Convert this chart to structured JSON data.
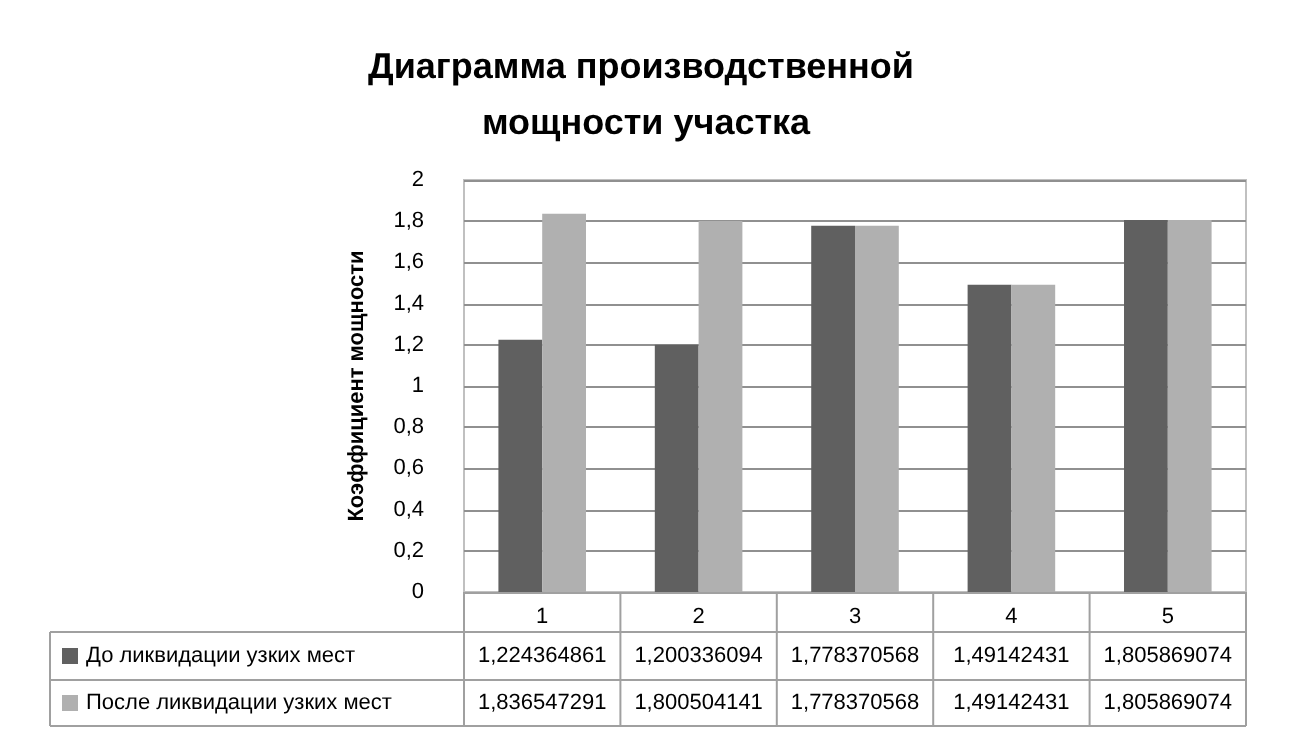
{
  "chart_data": {
    "type": "bar",
    "title": "Диаграмма производственной мощности участка",
    "ylabel": "Коэффициент мощности",
    "categories": [
      "1",
      "2",
      "3",
      "4",
      "5"
    ],
    "series": [
      {
        "name": "До ликвидации узких мест",
        "color": "#606060",
        "values": [
          1.224364861,
          1.200336094,
          1.778370568,
          1.49142431,
          1.805869074
        ],
        "value_labels": [
          "1,224364861",
          "1,200336094",
          "1,778370568",
          "1,49142431",
          "1,805869074"
        ]
      },
      {
        "name": "После ликвидации узких мест",
        "color": "#b0b0b0",
        "values": [
          1.836547291,
          1.800504141,
          1.778370568,
          1.49142431,
          1.805869074
        ],
        "value_labels": [
          "1,836547291",
          "1,800504141",
          "1,778370568",
          "1,49142431",
          "1,805869074"
        ]
      }
    ],
    "ylim": [
      0,
      2
    ],
    "yticks": [
      {
        "value": 0,
        "label": "0"
      },
      {
        "value": 0.2,
        "label": "0,2"
      },
      {
        "value": 0.4,
        "label": "0,4"
      },
      {
        "value": 0.6,
        "label": "0,6"
      },
      {
        "value": 0.8,
        "label": "0,8"
      },
      {
        "value": 1,
        "label": "1"
      },
      {
        "value": 1.2,
        "label": "1,2"
      },
      {
        "value": 1.4,
        "label": "1,4"
      },
      {
        "value": 1.6,
        "label": "1,6"
      },
      {
        "value": 1.8,
        "label": "1,8"
      },
      {
        "value": 2,
        "label": "2"
      }
    ],
    "grid": "y",
    "legend": "bottom"
  }
}
